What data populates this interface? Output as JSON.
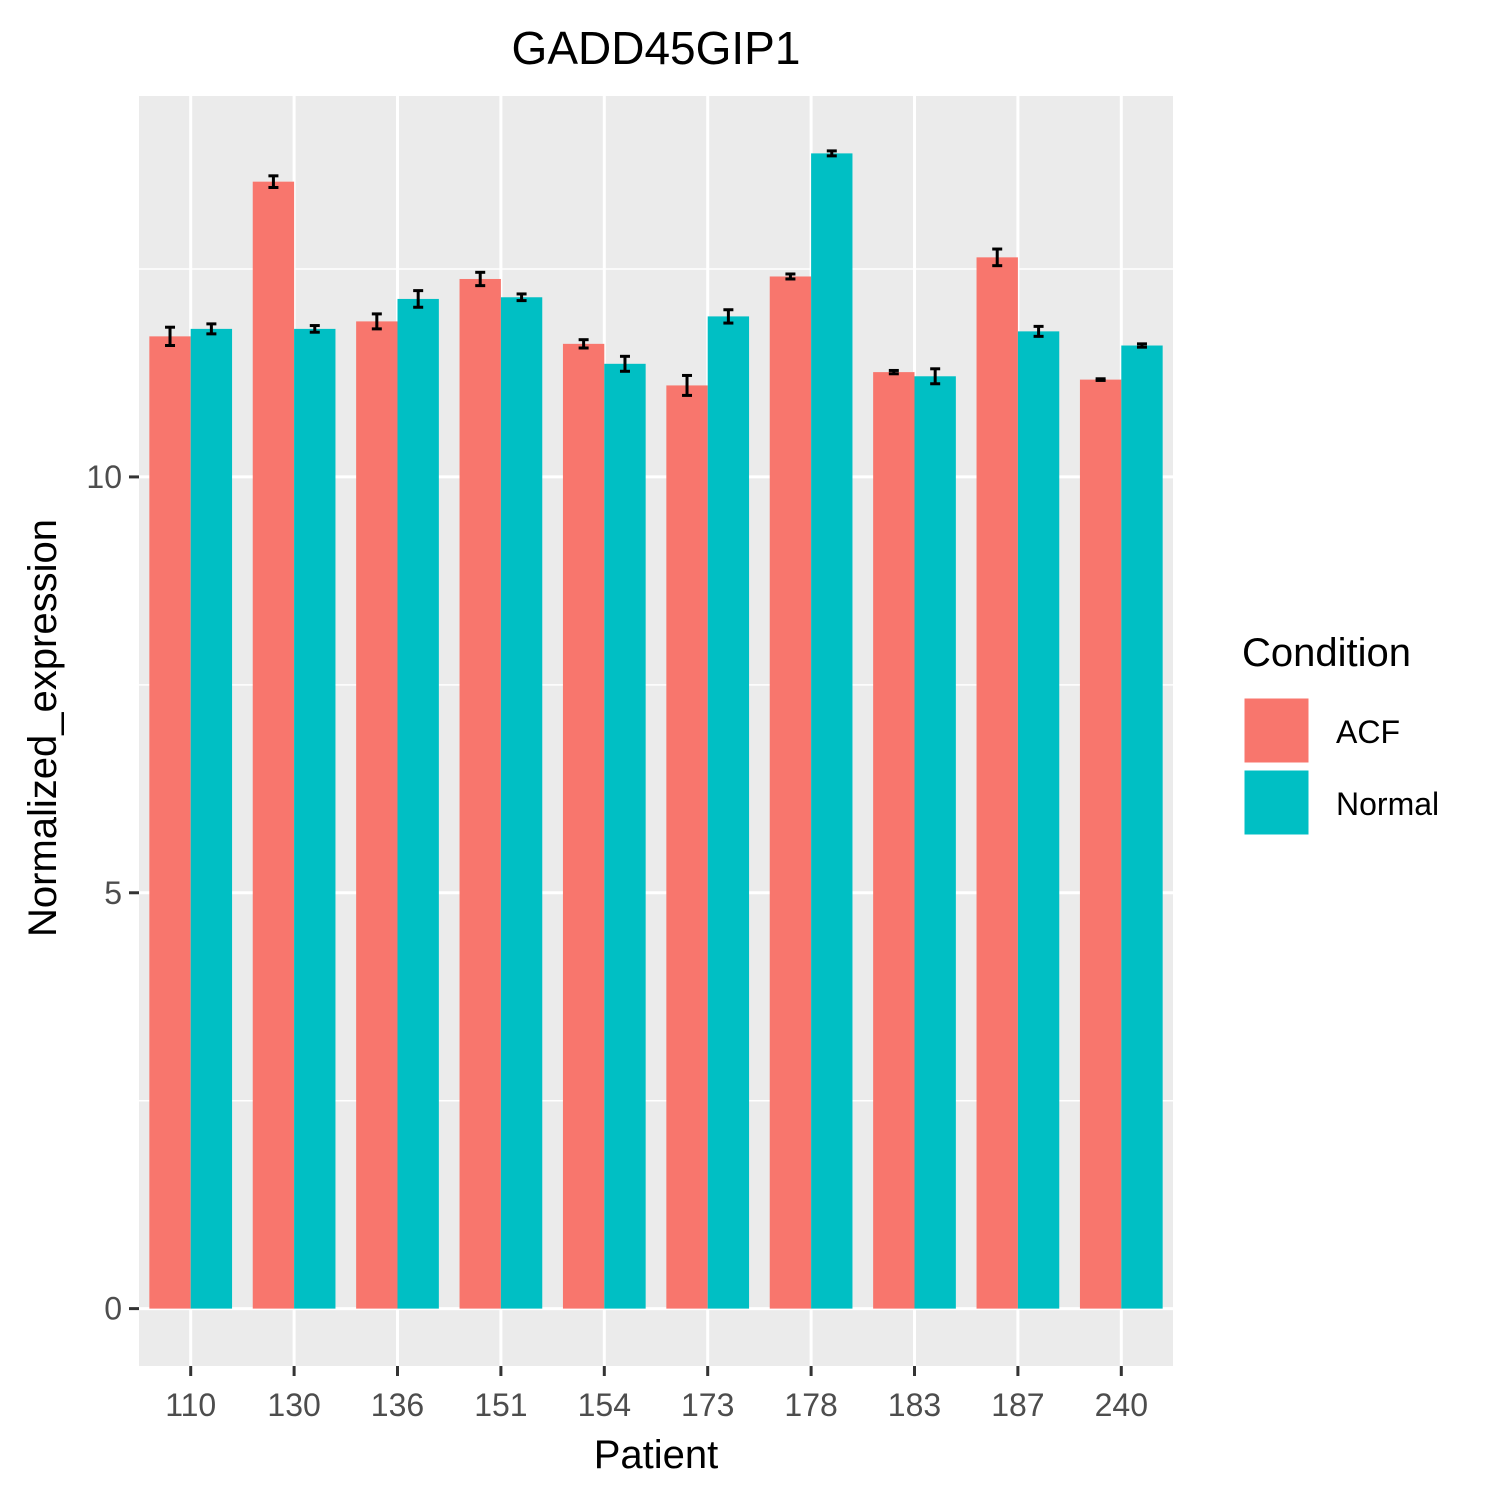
{
  "chart_data": {
    "type": "bar",
    "title": "GADD45GIP1",
    "xlabel": "Patient",
    "ylabel": "Normalized_expression",
    "categories": [
      "110",
      "130",
      "136",
      "151",
      "154",
      "173",
      "178",
      "183",
      "187",
      "240"
    ],
    "series": [
      {
        "name": "ACF",
        "color": "#F8766D",
        "values": [
          11.69,
          13.55,
          11.87,
          12.38,
          11.6,
          11.1,
          12.41,
          11.26,
          12.64,
          11.17
        ],
        "errors": [
          0.11,
          0.07,
          0.09,
          0.08,
          0.05,
          0.12,
          0.03,
          0.02,
          0.1,
          0.01
        ]
      },
      {
        "name": "Normal",
        "color": "#00BFC4",
        "values": [
          11.78,
          11.78,
          12.14,
          12.16,
          11.36,
          11.93,
          13.89,
          11.21,
          11.75,
          11.58
        ],
        "errors": [
          0.06,
          0.04,
          0.1,
          0.04,
          0.09,
          0.08,
          0.03,
          0.09,
          0.06,
          0.02
        ]
      }
    ],
    "yticks": [
      0,
      5,
      10
    ],
    "ylim": [
      -0.69,
      14.58
    ],
    "grid": true,
    "legend": {
      "title": "Condition",
      "position": "right"
    }
  }
}
